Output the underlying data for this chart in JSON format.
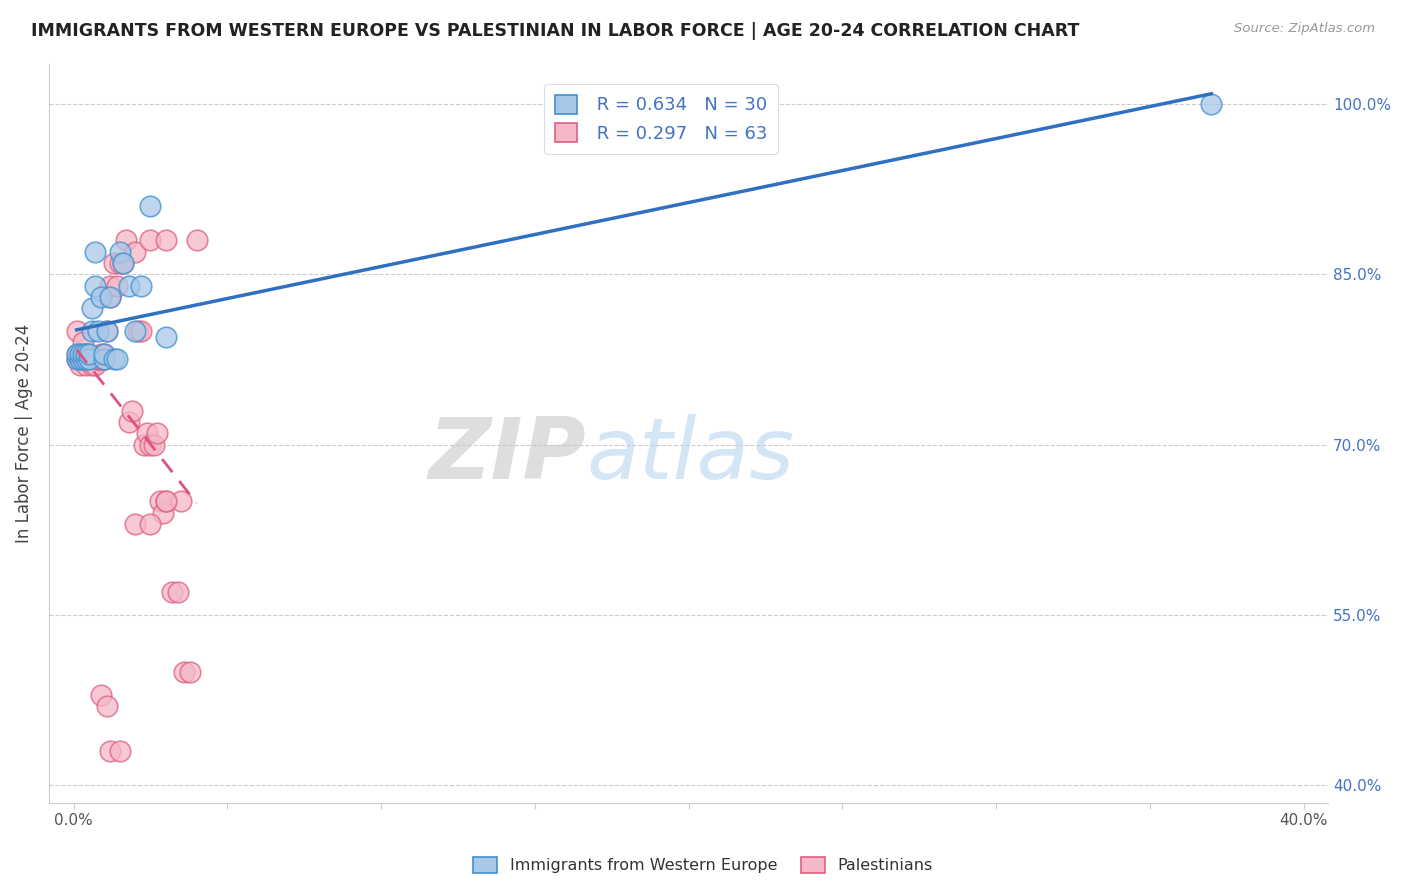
{
  "title": "IMMIGRANTS FROM WESTERN EUROPE VS PALESTINIAN IN LABOR FORCE | AGE 20-24 CORRELATION CHART",
  "source": "Source: ZipAtlas.com",
  "ylabel": "In Labor Force | Age 20-24",
  "xlim": [
    -0.008,
    0.408
  ],
  "ylim": [
    0.385,
    1.035
  ],
  "xtick_positions": [
    0.0,
    0.05,
    0.1,
    0.15,
    0.2,
    0.25,
    0.3,
    0.35,
    0.4
  ],
  "xtick_labels": [
    "0.0%",
    "",
    "",
    "",
    "",
    "",
    "",
    "",
    "40.0%"
  ],
  "ytick_positions": [
    0.4,
    0.55,
    0.7,
    0.85,
    1.0
  ],
  "ytick_labels": [
    "40.0%",
    "55.0%",
    "70.0%",
    "85.0%",
    "100.0%"
  ],
  "blue_R": 0.634,
  "blue_N": 30,
  "pink_R": 0.297,
  "pink_N": 63,
  "blue_fill": "#a8c8e8",
  "pink_fill": "#f4b8c8",
  "blue_edge": "#4090d0",
  "pink_edge": "#e06080",
  "blue_line": "#3070c0",
  "pink_line": "#e05080",
  "watermark_zip": "ZIP",
  "watermark_atlas": "atlas",
  "blue_x": [
    0.001,
    0.001,
    0.002,
    0.002,
    0.003,
    0.003,
    0.004,
    0.004,
    0.005,
    0.005,
    0.006,
    0.006,
    0.007,
    0.007,
    0.008,
    0.009,
    0.01,
    0.01,
    0.011,
    0.012,
    0.013,
    0.014,
    0.015,
    0.016,
    0.018,
    0.02,
    0.022,
    0.025,
    0.03,
    0.37
  ],
  "blue_y": [
    0.775,
    0.78,
    0.775,
    0.78,
    0.775,
    0.78,
    0.775,
    0.78,
    0.775,
    0.78,
    0.82,
    0.8,
    0.84,
    0.87,
    0.8,
    0.83,
    0.775,
    0.78,
    0.8,
    0.83,
    0.775,
    0.775,
    0.87,
    0.86,
    0.84,
    0.8,
    0.84,
    0.91,
    0.795,
    1.0
  ],
  "pink_x": [
    0.001,
    0.001,
    0.001,
    0.002,
    0.002,
    0.002,
    0.003,
    0.003,
    0.003,
    0.004,
    0.004,
    0.004,
    0.005,
    0.005,
    0.005,
    0.006,
    0.006,
    0.007,
    0.007,
    0.007,
    0.008,
    0.008,
    0.009,
    0.009,
    0.01,
    0.01,
    0.01,
    0.011,
    0.012,
    0.012,
    0.013,
    0.014,
    0.015,
    0.016,
    0.017,
    0.018,
    0.019,
    0.02,
    0.021,
    0.022,
    0.023,
    0.024,
    0.025,
    0.026,
    0.027,
    0.028,
    0.029,
    0.03,
    0.032,
    0.034,
    0.036,
    0.038,
    0.04,
    0.025,
    0.03,
    0.035,
    0.009,
    0.011,
    0.012,
    0.015,
    0.02,
    0.025,
    0.03
  ],
  "pink_y": [
    0.775,
    0.78,
    0.8,
    0.77,
    0.775,
    0.78,
    0.775,
    0.775,
    0.79,
    0.775,
    0.77,
    0.78,
    0.775,
    0.78,
    0.775,
    0.77,
    0.775,
    0.775,
    0.775,
    0.77,
    0.775,
    0.775,
    0.775,
    0.78,
    0.775,
    0.775,
    0.78,
    0.8,
    0.83,
    0.84,
    0.86,
    0.84,
    0.86,
    0.86,
    0.88,
    0.72,
    0.73,
    0.87,
    0.8,
    0.8,
    0.7,
    0.71,
    0.7,
    0.7,
    0.71,
    0.65,
    0.64,
    0.65,
    0.57,
    0.57,
    0.5,
    0.5,
    0.88,
    0.88,
    0.88,
    0.65,
    0.48,
    0.47,
    0.43,
    0.43,
    0.63,
    0.63,
    0.65
  ]
}
